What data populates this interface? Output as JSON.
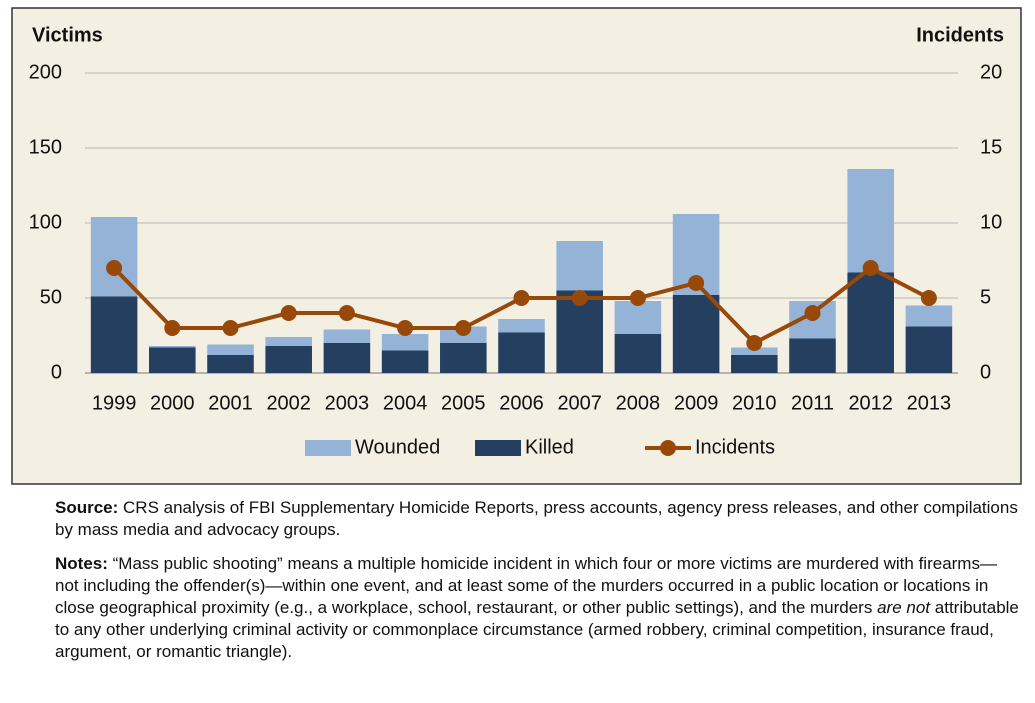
{
  "chart_data": {
    "type": "bar",
    "y_label": "Victims",
    "y2_label": "Incidents",
    "categories": [
      "1999",
      "2000",
      "2001",
      "2002",
      "2003",
      "2004",
      "2005",
      "2006",
      "2007",
      "2008",
      "2009",
      "2010",
      "2011",
      "2012",
      "2013"
    ],
    "series": [
      {
        "name": "Killed",
        "type": "bar",
        "color": "#243f60",
        "values": [
          51,
          17,
          12,
          18,
          20,
          15,
          20,
          27,
          55,
          26,
          52,
          12,
          23,
          67,
          31
        ]
      },
      {
        "name": "Wounded",
        "type": "bar",
        "color": "#95b3d7",
        "values": [
          53,
          1,
          7,
          6,
          9,
          11,
          11,
          9,
          33,
          22,
          54,
          5,
          25,
          69,
          14
        ]
      },
      {
        "name": "Incidents",
        "type": "line",
        "axis": "y2",
        "color": "#984807",
        "values": [
          7,
          3,
          3,
          4,
          4,
          3,
          3,
          5,
          5,
          5,
          6,
          2,
          4,
          7,
          5
        ]
      }
    ],
    "stacked": true,
    "ylim": [
      0,
      200
    ],
    "yticks": [
      0,
      50,
      100,
      150,
      200
    ],
    "y2lim": [
      0,
      20
    ],
    "y2ticks": [
      0,
      5,
      10,
      15,
      20
    ],
    "grid": true,
    "legend": "bottom"
  },
  "source": {
    "label": "Source:",
    "text": "CRS analysis of FBI Supplementary Homicide Reports, press accounts, agency press releases, and other compilations by mass media and advocacy groups."
  },
  "notes": {
    "label": "Notes:",
    "text_before": "“Mass public shooting” means a multiple homicide incident in which four or more victims are murdered with firearms—not including the offender(s)—within one event, and at least some of the murders occurred in a public location or locations in close geographical proximity (e.g., a workplace, school, restaurant, or other public settings), and the murders",
    "emphasis": "are not",
    "text_after": "attributable to any other underlying criminal activity or commonplace circumstance (armed robbery, criminal competition, insurance fraud, argument, or romantic triangle)."
  }
}
